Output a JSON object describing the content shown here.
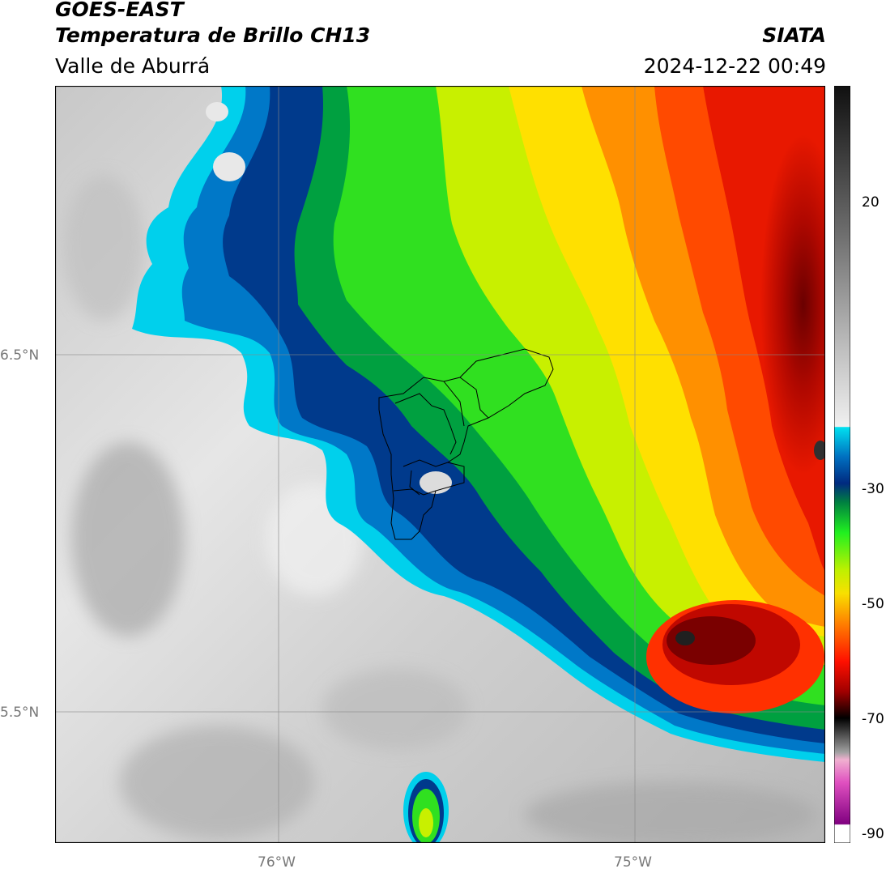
{
  "header": {
    "satellite": "GOES-EAST",
    "product": "Temperatura de Brillo CH13",
    "region": "Valle de Aburrá",
    "agency": "SIATA",
    "datetime": "2024-12-22 00:49"
  },
  "map": {
    "lat_labels": [
      "6.5°N",
      "5.5°N"
    ],
    "lon_labels": [
      "76°W",
      "75°W"
    ],
    "gridlines": true
  },
  "colorbar": {
    "ticks": [
      "20",
      "-30",
      "-50",
      "-70",
      "-90"
    ],
    "colors": {
      "warm": "#e8e8e8",
      "cyan": "#00d8f0",
      "blue": "#003a8c",
      "green": "#20e020",
      "yellow": "#f0f000",
      "orange": "#ff9000",
      "red": "#e01000",
      "darkred": "#5a0000",
      "magenta": "#e050c0",
      "purple": "#800080"
    }
  }
}
